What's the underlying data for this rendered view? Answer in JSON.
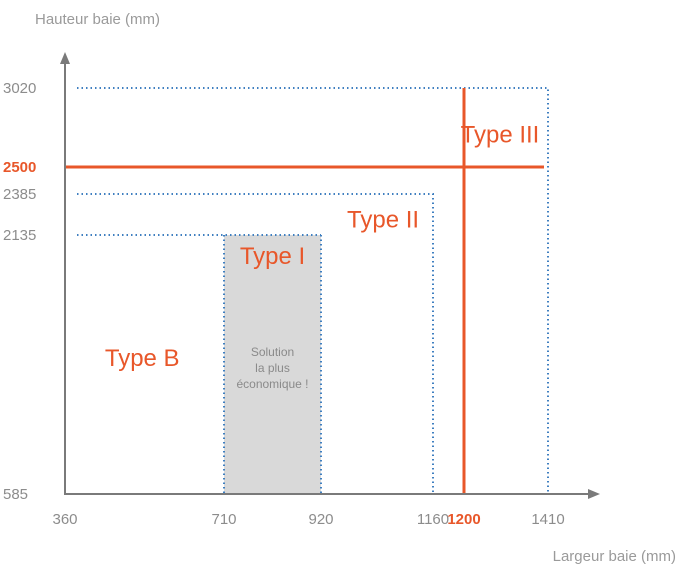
{
  "chart_data": {
    "type": "region-diagram",
    "xlabel": "Largeur baie (mm)",
    "ylabel": "Hauteur baie (mm)",
    "x_ticks": [
      {
        "value": 360,
        "label": "360"
      },
      {
        "value": 710,
        "label": "710"
      },
      {
        "value": 920,
        "label": "920"
      },
      {
        "value": 1160,
        "label": "1160"
      },
      {
        "value": 1200,
        "label": "1200",
        "highlight": true
      },
      {
        "value": 1410,
        "label": "1410"
      }
    ],
    "y_ticks": [
      {
        "value": 585,
        "label": "585"
      },
      {
        "value": 2135,
        "label": "2135"
      },
      {
        "value": 2385,
        "label": "2385"
      },
      {
        "value": 2500,
        "label": "2500",
        "highlight": true
      },
      {
        "value": 3020,
        "label": "3020"
      }
    ],
    "regions": [
      {
        "name": "Type B",
        "label_at": [
          530,
          1350
        ]
      },
      {
        "name": "Type I",
        "x_range": [
          710,
          920
        ],
        "y_range": [
          585,
          2135
        ],
        "shaded": true,
        "label_at": [
          815,
          1960
        ],
        "note_lines": [
          "Solution",
          "la plus",
          "économique !"
        ]
      },
      {
        "name": "Type II",
        "x_max": 1160,
        "y_max": 2385,
        "label_at": [
          1053,
          2180
        ]
      },
      {
        "name": "Type III",
        "x_max": 1410,
        "y_max": 3020,
        "label_at": [
          1290,
          2660
        ]
      }
    ],
    "limit_lines": [
      {
        "axis": "x",
        "value": 1200
      },
      {
        "axis": "y",
        "value": 2500
      }
    ],
    "colors": {
      "accent": "#e8572a",
      "dotted": "#3f7fc0",
      "shade": "#d9d9d9",
      "axis": "#7a7a7a",
      "text": "#8c8c8c"
    }
  }
}
